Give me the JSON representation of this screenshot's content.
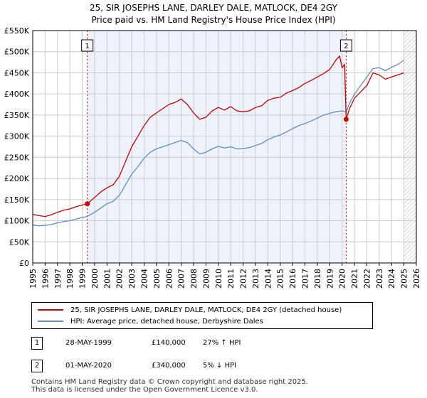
{
  "title_line1": "25, SIR JOSEPHS LANE, DARLEY DALE, MATLOCK, DE4 2GY",
  "title_line2": "Price paid vs. HM Land Registry's House Price Index (HPI)",
  "legend": {
    "property_label": "25, SIR JOSEPHS LANE, DARLEY DALE, MATLOCK, DE4 2GY (detached house)",
    "hpi_label": "HPI: Average price, detached house, Derbyshire Dales"
  },
  "annotations": [
    {
      "num": "1",
      "date": "28-MAY-1999",
      "price": "£140,000",
      "hpi": "27% ↑ HPI"
    },
    {
      "num": "2",
      "date": "01-MAY-2020",
      "price": "£340,000",
      "hpi": "5% ↓ HPI"
    }
  ],
  "footer_line1": "Contains HM Land Registry data © Crown copyright and database right 2025.",
  "footer_line2": "This data is licensed under the Open Government Licence v3.0.",
  "colors": {
    "property": "#cc0000",
    "hpi": "#5b8fc9",
    "shade": "#eef2fb",
    "grid": "#cccccc"
  },
  "chart_data": {
    "type": "line",
    "xlim": [
      1995,
      2026
    ],
    "ylim": [
      0,
      550000
    ],
    "y_ticks": [
      0,
      50000,
      100000,
      150000,
      200000,
      250000,
      300000,
      350000,
      400000,
      450000,
      500000,
      550000
    ],
    "y_tick_labels": [
      "£0",
      "£50K",
      "£100K",
      "£150K",
      "£200K",
      "£250K",
      "£300K",
      "£350K",
      "£400K",
      "£450K",
      "£500K",
      "£550K"
    ],
    "x_ticks": [
      1995,
      1996,
      1997,
      1998,
      1999,
      2000,
      2001,
      2002,
      2003,
      2004,
      2005,
      2006,
      2007,
      2008,
      2009,
      2010,
      2011,
      2012,
      2013,
      2014,
      2015,
      2016,
      2017,
      2018,
      2019,
      2020,
      2021,
      2022,
      2023,
      2024,
      2025,
      2026
    ],
    "x_tick_labels": [
      "1995",
      "1996",
      "1997",
      "1998",
      "1999",
      "2000",
      "2001",
      "2002",
      "2003",
      "2004",
      "2005",
      "2006",
      "2007",
      "2008",
      "2009",
      "2010",
      "2011",
      "2012",
      "2013",
      "2014",
      "2015",
      "2016",
      "2017",
      "2018",
      "2019",
      "2020",
      "2021",
      "2022",
      "2023",
      "2024",
      "2025",
      "2026"
    ],
    "shade_range": [
      1999.41,
      2020.33
    ],
    "hatch_from": 2025.0,
    "sales": [
      {
        "label": "1",
        "x": 1999.41,
        "y": 140000
      },
      {
        "label": "2",
        "x": 2020.33,
        "y": 340000
      }
    ],
    "series": [
      {
        "name": "25, SIR JOSEPHS LANE, DARLEY DALE, MATLOCK, DE4 2GY (detached house)",
        "x": [
          1995,
          1995.5,
          1996,
          1996.5,
          1997,
          1997.5,
          1998,
          1998.5,
          1999,
          1999.41,
          2000,
          2000.5,
          2001,
          2001.5,
          2002,
          2002.5,
          2003,
          2003.5,
          2004,
          2004.5,
          2005,
          2005.5,
          2006,
          2006.5,
          2007,
          2007.5,
          2008,
          2008.5,
          2009,
          2009.5,
          2010,
          2010.5,
          2011,
          2011.5,
          2012,
          2012.5,
          2013,
          2013.5,
          2014,
          2014.5,
          2015,
          2015.5,
          2016,
          2016.5,
          2017,
          2017.5,
          2018,
          2018.5,
          2019,
          2019.5,
          2019.8,
          2020.0,
          2020.2,
          2020.33,
          2020.6,
          2021,
          2021.5,
          2022,
          2022.5,
          2023,
          2023.5,
          2024,
          2024.5,
          2025
        ],
        "values": [
          115000,
          112000,
          110000,
          114000,
          120000,
          125000,
          128000,
          133000,
          137000,
          140000,
          155000,
          168000,
          178000,
          185000,
          205000,
          240000,
          275000,
          300000,
          325000,
          345000,
          355000,
          365000,
          375000,
          380000,
          388000,
          375000,
          355000,
          340000,
          345000,
          360000,
          368000,
          362000,
          370000,
          360000,
          358000,
          360000,
          368000,
          372000,
          385000,
          390000,
          392000,
          402000,
          408000,
          415000,
          425000,
          432000,
          440000,
          448000,
          458000,
          480000,
          490000,
          462000,
          470000,
          340000,
          365000,
          390000,
          405000,
          420000,
          450000,
          445000,
          435000,
          440000,
          445000,
          450000
        ]
      },
      {
        "name": "HPI: Average price, detached house, Derbyshire Dales",
        "x": [
          1995,
          1995.5,
          1996,
          1996.5,
          1997,
          1997.5,
          1998,
          1998.5,
          1999,
          1999.41,
          2000,
          2000.5,
          2001,
          2001.5,
          2002,
          2002.5,
          2003,
          2003.5,
          2004,
          2004.5,
          2005,
          2005.5,
          2006,
          2006.5,
          2007,
          2007.5,
          2008,
          2008.5,
          2009,
          2009.5,
          2010,
          2010.5,
          2011,
          2011.5,
          2012,
          2012.5,
          2013,
          2013.5,
          2014,
          2014.5,
          2015,
          2015.5,
          2016,
          2016.5,
          2017,
          2017.5,
          2018,
          2018.5,
          2019,
          2019.5,
          2020,
          2020.33,
          2020.6,
          2021,
          2021.5,
          2022,
          2022.5,
          2023,
          2023.5,
          2024,
          2024.5,
          2025
        ],
        "values": [
          90000,
          88000,
          89000,
          91000,
          95000,
          98000,
          100000,
          104000,
          108000,
          110000,
          120000,
          130000,
          140000,
          146000,
          160000,
          185000,
          210000,
          228000,
          248000,
          262000,
          270000,
          275000,
          280000,
          285000,
          290000,
          285000,
          270000,
          258000,
          262000,
          270000,
          276000,
          272000,
          275000,
          270000,
          271000,
          273000,
          278000,
          283000,
          292000,
          298000,
          303000,
          310000,
          318000,
          325000,
          330000,
          336000,
          343000,
          350000,
          354000,
          358000,
          360000,
          357000,
          378000,
          400000,
          420000,
          440000,
          460000,
          462000,
          455000,
          463000,
          470000,
          480000
        ]
      }
    ]
  }
}
